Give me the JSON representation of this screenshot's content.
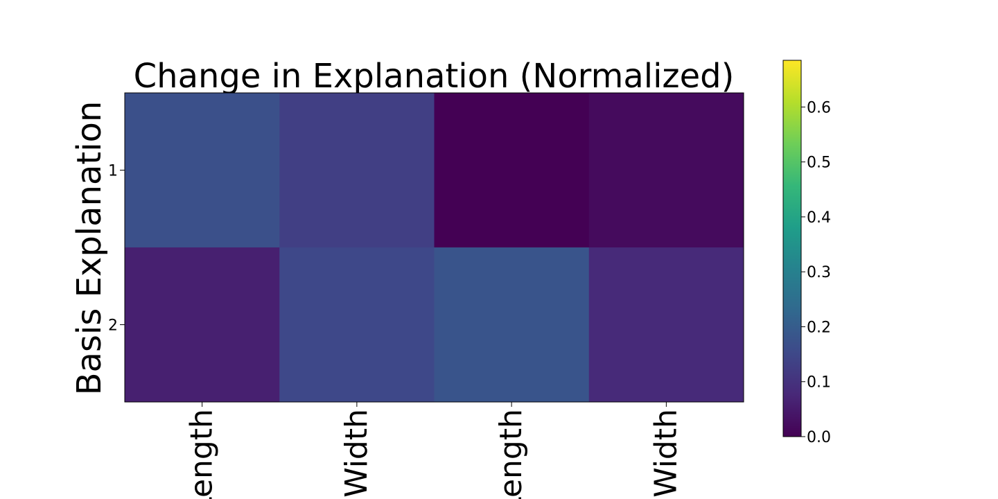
{
  "chart_data": {
    "type": "heatmap",
    "title": "Change in Explanation (Normalized)",
    "ylabel": "Basis Explanation",
    "xlabel": "",
    "x_tick_labels": [
      "Length",
      "Width",
      "Length",
      "Width"
    ],
    "y_tick_labels": [
      "1",
      "2"
    ],
    "values": [
      [
        0.17,
        0.13,
        0.0,
        0.02
      ],
      [
        0.06,
        0.15,
        0.18,
        0.08
      ]
    ],
    "colormap": "viridis",
    "colorbar": {
      "range": [
        0.0,
        0.685
      ],
      "ticks": [
        0.0,
        0.1,
        0.2,
        0.3,
        0.4,
        0.5,
        0.6
      ],
      "tick_labels": [
        "0.0",
        "0.1",
        "0.2",
        "0.3",
        "0.4",
        "0.5",
        "0.6"
      ]
    },
    "grid": false
  }
}
